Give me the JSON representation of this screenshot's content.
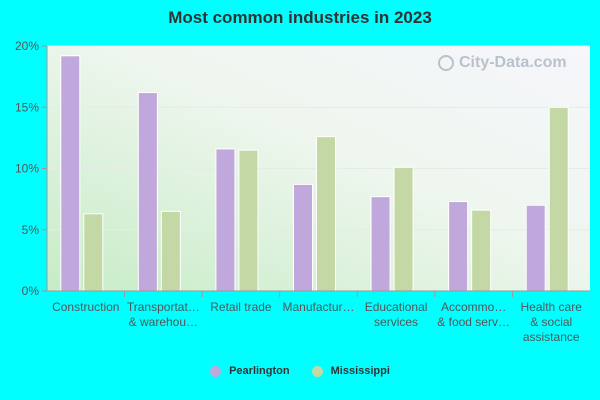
{
  "chart_data": {
    "type": "bar",
    "title": "Most common industries in 2023",
    "categories": [
      [
        "Construction"
      ],
      [
        "Transportat…",
        "& warehou…"
      ],
      [
        "Retail trade"
      ],
      [
        "Manufactur…"
      ],
      [
        "Educational",
        "services"
      ],
      [
        "Accommo…",
        "& food serv…"
      ],
      [
        "Health care",
        "& social",
        "assistance"
      ]
    ],
    "series": [
      {
        "name": "Pearlington",
        "color": "#c0a8dc",
        "values": [
          19.2,
          16.2,
          11.6,
          8.7,
          7.7,
          7.3,
          7.0
        ]
      },
      {
        "name": "Mississippi",
        "color": "#c4d8a6",
        "values": [
          6.3,
          6.5,
          11.5,
          12.6,
          10.1,
          6.6,
          15.0
        ]
      }
    ],
    "ylim": [
      0,
      20
    ],
    "yticks": [
      "0%",
      "5%",
      "10%",
      "15%",
      "20%"
    ],
    "ytick_values": [
      0,
      5,
      10,
      15,
      20
    ],
    "legend_position": "bottom",
    "watermark": "City-Data.com"
  }
}
